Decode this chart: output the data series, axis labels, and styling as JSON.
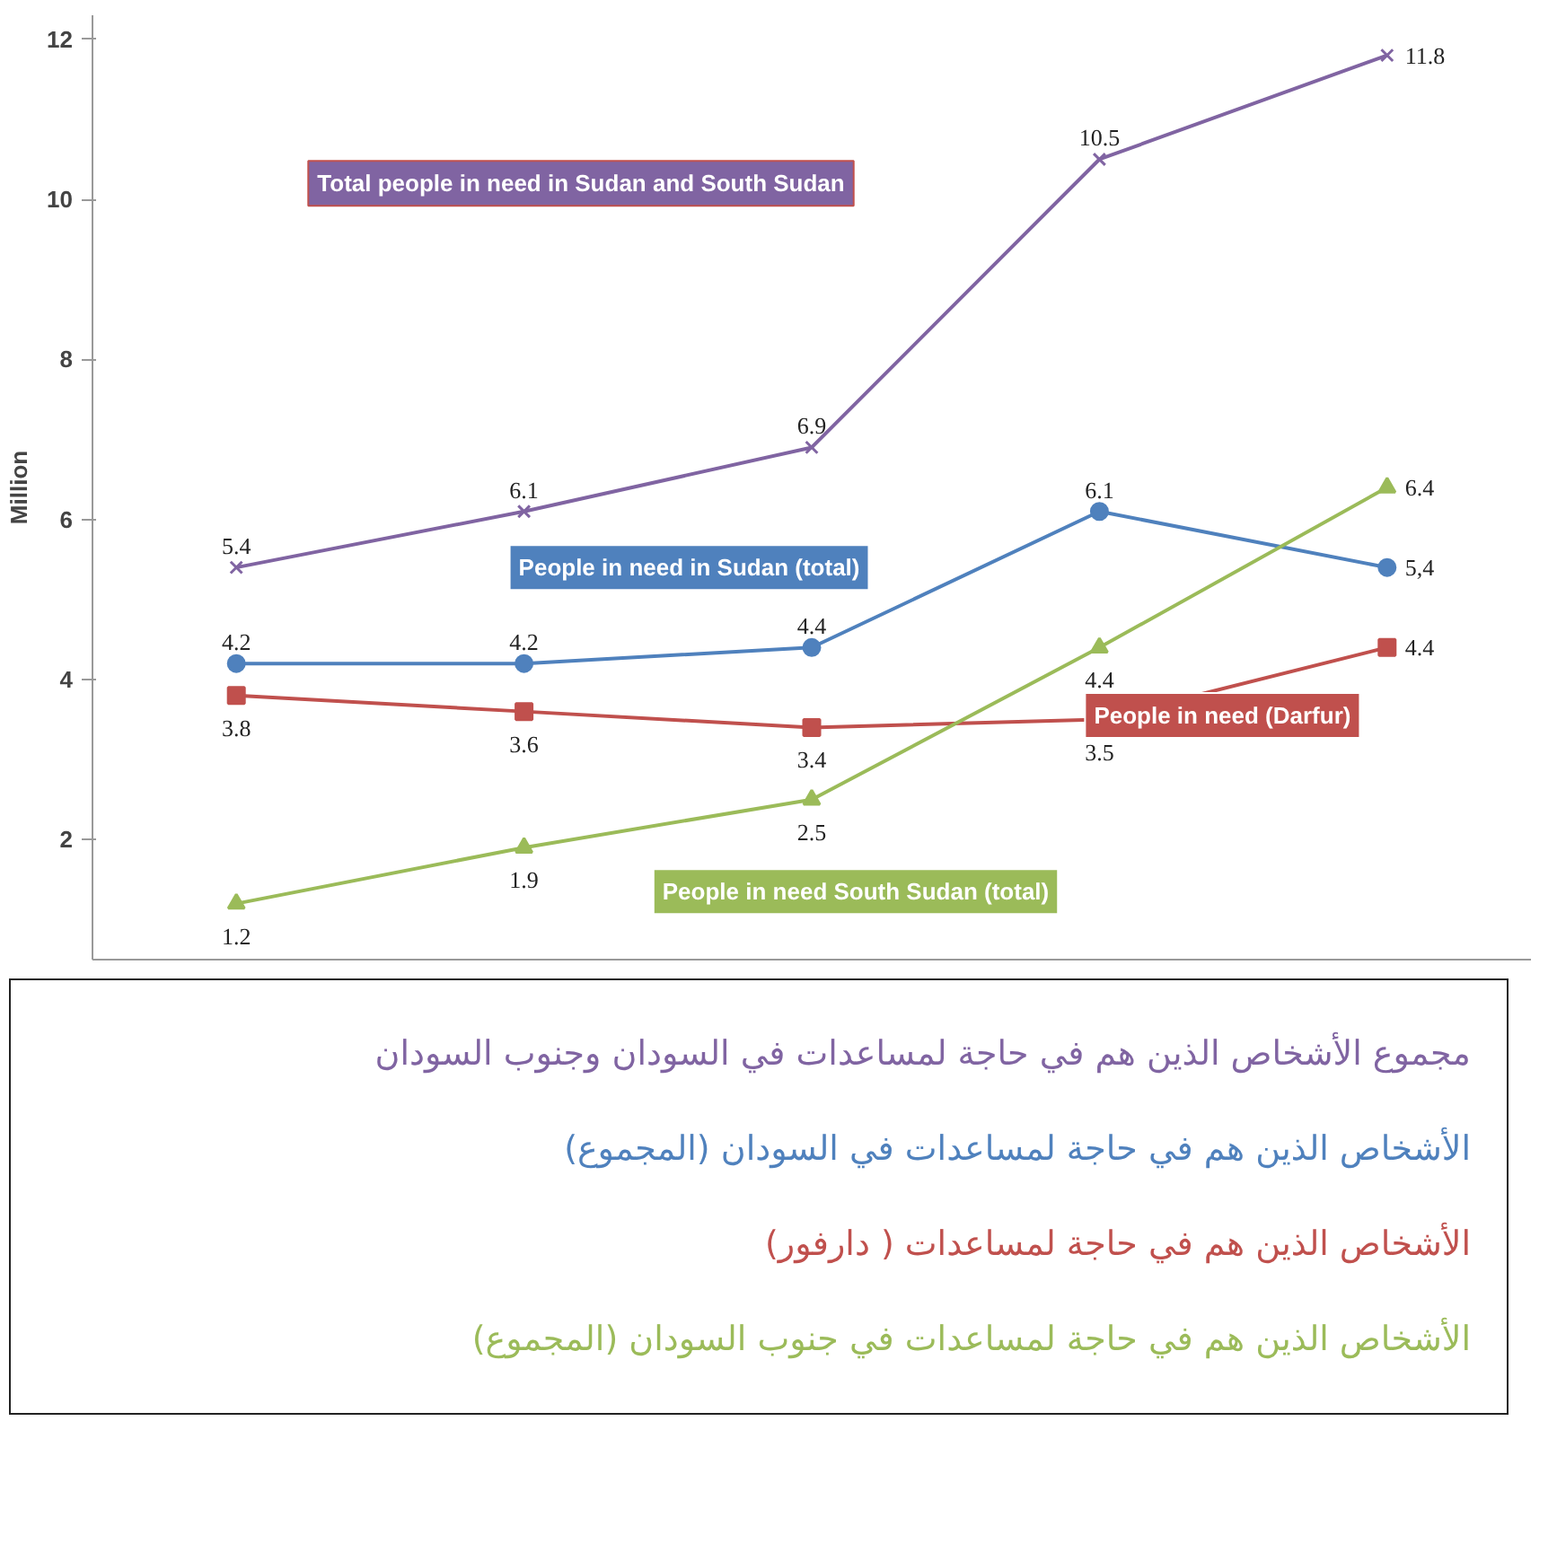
{
  "chart_data": {
    "type": "line",
    "ylabel": "Million",
    "categories": [
      null,
      null,
      null,
      null,
      null
    ],
    "ylim": [
      0.5,
      12.3
    ],
    "yticks": [
      2,
      4,
      6,
      8,
      10,
      12
    ],
    "grid": false,
    "line_style": "solid",
    "series": [
      {
        "name": "Total people in need in Sudan and South Sudan",
        "color": "#8064a2",
        "marker": "cross",
        "values": [
          5.4,
          6.1,
          6.9,
          10.5,
          11.8
        ],
        "value_labels": [
          "5.4",
          "6.1",
          "6.9",
          "10.5",
          "11.8"
        ]
      },
      {
        "name": "People in need in Sudan (total)",
        "color": "#4f81bd",
        "marker": "circle",
        "values": [
          4.2,
          4.2,
          4.4,
          6.1,
          5.4
        ],
        "value_labels": [
          "4.2",
          "4.2",
          "4.4",
          "6.1",
          "5,4"
        ]
      },
      {
        "name": "People in need (Darfur)",
        "color": "#c0504d",
        "marker": "square",
        "values": [
          3.8,
          3.6,
          3.4,
          3.5,
          4.4
        ],
        "value_labels": [
          "3.8",
          "3.6",
          "3.4",
          "3.5",
          "4.4"
        ]
      },
      {
        "name": "People in need South Sudan (total)",
        "color": "#9bbb59",
        "marker": "triangle",
        "values": [
          1.2,
          1.9,
          2.5,
          4.4,
          6.4
        ],
        "value_labels": [
          "1.2",
          "1.9",
          "2.5",
          "4.4",
          "6.4"
        ]
      }
    ],
    "annotations": [
      "مجموع الأشخاص الذين هم في حاجة لمساعدات في السودان وجنوب السودان",
      "الأشخاص الذين هم في حاجة لمساعدات في السودان (المجموع)",
      "الأشخاص الذين هم في حاجة لمساعدات ( دارفور)",
      "الأشخاص الذين هم في حاجة لمساعدات في جنوب السودان (المجموع)"
    ]
  }
}
